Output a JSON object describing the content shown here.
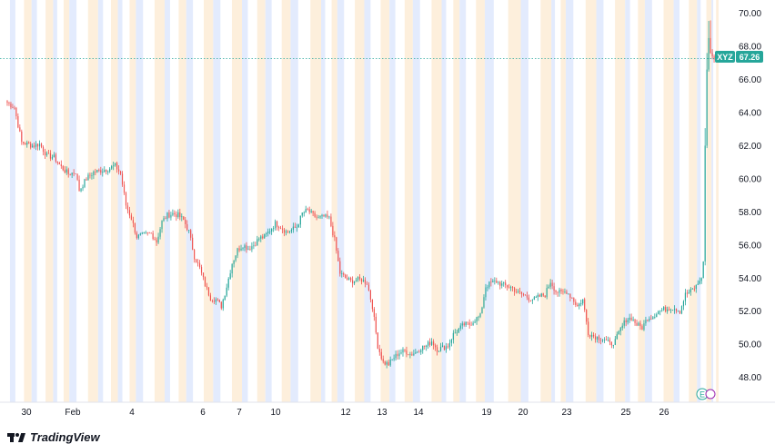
{
  "chart_data": {
    "type": "candlestick",
    "symbol": "XYZ",
    "last_price_label": "67.26",
    "last_price": 67.26,
    "y_ticks": [
      "70.00",
      "68.00",
      "66.00",
      "64.00",
      "62.00",
      "60.00",
      "58.00",
      "56.00",
      "54.00",
      "52.00",
      "50.00",
      "48.00"
    ],
    "ylim": [
      46.5,
      70.8
    ],
    "x_labels": [
      "30",
      "Feb",
      "4",
      "6",
      "7",
      "10",
      "12",
      "13",
      "14",
      "19",
      "20",
      "23",
      "25",
      "26"
    ],
    "grid": false,
    "colors": {
      "up": "#26a69a",
      "down": "#ef5350",
      "session_pre": "#e3ebfd",
      "session_post": "#fdefdc",
      "label_bg": "#26a69a"
    },
    "waypoints": [
      [
        0,
        64.6
      ],
      [
        4,
        64.3
      ],
      [
        8,
        62.2
      ],
      [
        14,
        62.0
      ],
      [
        18,
        62.1
      ],
      [
        22,
        61.4
      ],
      [
        26,
        61.3
      ],
      [
        30,
        60.7
      ],
      [
        34,
        60.3
      ],
      [
        38,
        60.4
      ],
      [
        40,
        59.3
      ],
      [
        44,
        60.0
      ],
      [
        48,
        60.4
      ],
      [
        52,
        60.5
      ],
      [
        56,
        60.6
      ],
      [
        60,
        60.8
      ],
      [
        63,
        60.3
      ],
      [
        66,
        58.4
      ],
      [
        69,
        57.6
      ],
      [
        72,
        56.5
      ],
      [
        76,
        56.6
      ],
      [
        80,
        56.7
      ],
      [
        83,
        56.2
      ],
      [
        86,
        57.4
      ],
      [
        89,
        57.8
      ],
      [
        92,
        57.9
      ],
      [
        95,
        57.8
      ],
      [
        98,
        57.5
      ],
      [
        101,
        56.8
      ],
      [
        104,
        55.3
      ],
      [
        107,
        54.6
      ],
      [
        110,
        53.6
      ],
      [
        113,
        52.8
      ],
      [
        116,
        52.7
      ],
      [
        119,
        52.3
      ],
      [
        122,
        53.5
      ],
      [
        125,
        54.9
      ],
      [
        128,
        55.7
      ],
      [
        131,
        56.0
      ],
      [
        134,
        55.8
      ],
      [
        137,
        56.0
      ],
      [
        140,
        56.4
      ],
      [
        143,
        56.5
      ],
      [
        146,
        56.9
      ],
      [
        149,
        57.3
      ],
      [
        152,
        57.1
      ],
      [
        155,
        56.8
      ],
      [
        158,
        56.9
      ],
      [
        161,
        57.1
      ],
      [
        164,
        57.9
      ],
      [
        167,
        58.1
      ],
      [
        170,
        57.8
      ],
      [
        173,
        57.6
      ],
      [
        176,
        57.7
      ],
      [
        179,
        57.6
      ],
      [
        182,
        56.3
      ],
      [
        185,
        54.3
      ],
      [
        188,
        54.0
      ],
      [
        191,
        53.8
      ],
      [
        194,
        53.9
      ],
      [
        197,
        53.9
      ],
      [
        200,
        53.7
      ],
      [
        203,
        52.3
      ],
      [
        206,
        49.9
      ],
      [
        209,
        48.9
      ],
      [
        212,
        48.8
      ],
      [
        215,
        49.2
      ],
      [
        218,
        49.5
      ],
      [
        221,
        49.6
      ],
      [
        224,
        49.4
      ],
      [
        227,
        49.5
      ],
      [
        230,
        49.8
      ],
      [
        233,
        49.9
      ],
      [
        236,
        50.2
      ],
      [
        239,
        49.7
      ],
      [
        242,
        49.8
      ],
      [
        245,
        49.9
      ],
      [
        248,
        50.6
      ],
      [
        251,
        50.9
      ],
      [
        254,
        51.2
      ],
      [
        257,
        51.2
      ],
      [
        260,
        51.5
      ],
      [
        263,
        51.7
      ],
      [
        266,
        53.5
      ],
      [
        269,
        53.7
      ],
      [
        272,
        53.8
      ],
      [
        275,
        53.6
      ],
      [
        278,
        53.5
      ],
      [
        281,
        53.4
      ],
      [
        284,
        53.1
      ],
      [
        287,
        53.0
      ],
      [
        290,
        52.8
      ],
      [
        293,
        52.7
      ],
      [
        296,
        52.9
      ],
      [
        299,
        53.0
      ],
      [
        302,
        53.8
      ],
      [
        305,
        53.2
      ],
      [
        308,
        53.1
      ],
      [
        311,
        53.2
      ],
      [
        314,
        52.8
      ],
      [
        317,
        52.3
      ],
      [
        320,
        52.7
      ],
      [
        323,
        50.7
      ],
      [
        326,
        50.5
      ],
      [
        329,
        50.4
      ],
      [
        332,
        50.3
      ],
      [
        335,
        50.0
      ],
      [
        338,
        50.2
      ],
      [
        341,
        50.9
      ],
      [
        344,
        51.5
      ],
      [
        347,
        51.6
      ],
      [
        350,
        51.2
      ],
      [
        353,
        51.0
      ],
      [
        356,
        51.6
      ],
      [
        359,
        51.7
      ],
      [
        362,
        52.0
      ],
      [
        365,
        52.1
      ],
      [
        368,
        52.2
      ],
      [
        371,
        52.2
      ],
      [
        374,
        52.0
      ],
      [
        377,
        53.0
      ],
      [
        380,
        53.2
      ],
      [
        383,
        53.5
      ],
      [
        386,
        54.0
      ],
      [
        387,
        55.0
      ],
      [
        388,
        62.0
      ],
      [
        389,
        66.6
      ],
      [
        390,
        68.5
      ],
      [
        391,
        67.6
      ],
      [
        393,
        67.2
      ],
      [
        395,
        67.26
      ]
    ],
    "daily_x_ticks": [
      2,
      14,
      26,
      35,
      51,
      62,
      72,
      88,
      100,
      115,
      131,
      144,
      158,
      175,
      184,
      199,
      213,
      226,
      242,
      252,
      266,
      286,
      303,
      311,
      328,
      344,
      355,
      371,
      384,
      392
    ]
  },
  "footer": {
    "brand": "TradingView"
  }
}
